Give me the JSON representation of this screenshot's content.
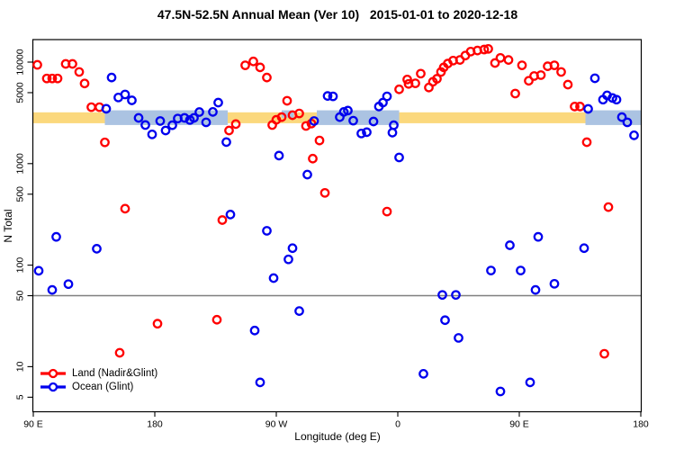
{
  "title": "47.5N-52.5N Annual Mean (Ver 10)   2015-01-01 to 2020-12-18",
  "axes": {
    "x": {
      "label": "Longitude (deg E)",
      "range_unwrapped_deg": [
        90,
        540
      ],
      "ticks": [
        {
          "lon": 90,
          "label": "90 E"
        },
        {
          "lon": 180,
          "label": "180"
        },
        {
          "lon": 270,
          "label": "90 W"
        },
        {
          "lon": 360,
          "label": "0"
        },
        {
          "lon": 450,
          "label": "90 E"
        },
        {
          "lon": 540,
          "label": "180"
        }
      ]
    },
    "y": {
      "label": "N Total",
      "scale": "log",
      "ticks": [
        "5",
        "10",
        "50",
        "100",
        "500",
        "1000",
        "5000",
        "10000"
      ],
      "range": [
        3.5,
        16500
      ]
    }
  },
  "reference": {
    "gray_line_value": 50,
    "gray_line_color": "#7f7f7f",
    "yellow_band": {
      "value_from": 2500,
      "value_to": 3200,
      "lon_from": 90,
      "lon_to": 540,
      "color": "#FBD87D"
    },
    "ocean_band_color": "#ABC3E2",
    "ocean_band": {
      "value_from": 2400,
      "value_to": 3350
    },
    "ocean_band_segments": [
      {
        "lon_from": 143,
        "lon_to": 234,
        "partial": false
      },
      {
        "lon_from": 274,
        "lon_to": 283,
        "partial": true
      },
      {
        "lon_from": 300,
        "lon_to": 361,
        "partial": false
      },
      {
        "lon_from": 499,
        "lon_to": 540,
        "partial": false
      }
    ]
  },
  "legend": {
    "items": [
      {
        "label": "Land (Nadir&Glint)",
        "color": "#FF0000"
      },
      {
        "label": "Ocean (Glint)",
        "color": "#0000EE"
      }
    ]
  },
  "chart_data": {
    "type": "scatter",
    "title": "47.5N-52.5N Annual Mean (Ver 10)   2015-01-01 to 2020-12-18",
    "xlabel": "Longitude (deg E)",
    "ylabel": "N Total",
    "x_is_longitude_unwrapped_90E_to_180": true,
    "ylog": true,
    "legend_position": "bottom-left",
    "series": [
      {
        "name": "Land (Nadir&Glint)",
        "color": "#FF0000",
        "points": [
          [
            93,
            9400
          ],
          [
            100,
            6900
          ],
          [
            104,
            6900
          ],
          [
            108,
            6900
          ],
          [
            114,
            9600
          ],
          [
            119,
            9600
          ],
          [
            124,
            8000
          ],
          [
            128,
            6160
          ],
          [
            133,
            3600
          ],
          [
            139,
            3600
          ],
          [
            143,
            1620
          ],
          [
            154,
            13.7
          ],
          [
            158,
            360
          ],
          [
            182,
            26.5
          ],
          [
            226,
            29
          ],
          [
            230,
            278
          ],
          [
            235,
            2120
          ],
          [
            240,
            2450
          ],
          [
            247,
            9300
          ],
          [
            253,
            10150
          ],
          [
            258,
            8870
          ],
          [
            263,
            7050
          ],
          [
            267,
            2400
          ],
          [
            270,
            2700
          ],
          [
            274,
            2870
          ],
          [
            278,
            4160
          ],
          [
            282,
            3000
          ],
          [
            287,
            3120
          ],
          [
            292,
            2350
          ],
          [
            296,
            2480
          ],
          [
            297,
            1120
          ],
          [
            302,
            1690
          ],
          [
            306,
            515
          ],
          [
            352,
            337
          ],
          [
            361,
            5390
          ],
          [
            367,
            6740
          ],
          [
            368,
            6100
          ],
          [
            373,
            6180
          ],
          [
            377,
            7700
          ],
          [
            383,
            5620
          ],
          [
            386,
            6400
          ],
          [
            389,
            6850
          ],
          [
            392,
            8000
          ],
          [
            394,
            8870
          ],
          [
            397,
            9670
          ],
          [
            401,
            10350
          ],
          [
            406,
            10500
          ],
          [
            410,
            11600
          ],
          [
            414,
            12700
          ],
          [
            419,
            13000
          ],
          [
            424,
            13300
          ],
          [
            427,
            13500
          ],
          [
            432,
            9800
          ],
          [
            436,
            11000
          ],
          [
            442,
            10500
          ],
          [
            447,
            4900
          ],
          [
            452,
            9300
          ],
          [
            457,
            6550
          ],
          [
            461,
            7300
          ],
          [
            466,
            7450
          ],
          [
            471,
            9100
          ],
          [
            476,
            9300
          ],
          [
            481,
            8000
          ],
          [
            486,
            6000
          ],
          [
            491,
            3650
          ],
          [
            495,
            3650
          ],
          [
            500,
            1625
          ],
          [
            513,
            13.4
          ],
          [
            516,
            373
          ]
        ]
      },
      {
        "name": "Ocean (Glint)",
        "color": "#0000EE",
        "points": [
          [
            94,
            88
          ],
          [
            104,
            57
          ],
          [
            107,
            190
          ],
          [
            116,
            65
          ],
          [
            137,
            145
          ],
          [
            144,
            3470
          ],
          [
            148,
            7050
          ],
          [
            153,
            4480
          ],
          [
            158,
            4800
          ],
          [
            163,
            4200
          ],
          [
            168,
            2820
          ],
          [
            173,
            2400
          ],
          [
            178,
            1940
          ],
          [
            184,
            2630
          ],
          [
            188,
            2120
          ],
          [
            193,
            2390
          ],
          [
            197,
            2780
          ],
          [
            202,
            2820
          ],
          [
            206,
            2690
          ],
          [
            209,
            2820
          ],
          [
            213,
            3220
          ],
          [
            218,
            2550
          ],
          [
            223,
            3230
          ],
          [
            227,
            3990
          ],
          [
            233,
            1630
          ],
          [
            236,
            315
          ],
          [
            254,
            22.7
          ],
          [
            258,
            7
          ],
          [
            263,
            218
          ],
          [
            268,
            74.5
          ],
          [
            272,
            1200
          ],
          [
            279,
            114
          ],
          [
            282,
            147
          ],
          [
            287,
            35.3
          ],
          [
            293,
            780
          ],
          [
            298,
            2630
          ],
          [
            308,
            4640
          ],
          [
            312,
            4600
          ],
          [
            317,
            2870
          ],
          [
            320,
            3230
          ],
          [
            323,
            3330
          ],
          [
            327,
            2650
          ],
          [
            333,
            1980
          ],
          [
            337,
            2040
          ],
          [
            342,
            2600
          ],
          [
            346,
            3650
          ],
          [
            349,
            3990
          ],
          [
            352,
            4600
          ],
          [
            356,
            2020
          ],
          [
            357,
            2390
          ],
          [
            361,
            1150
          ],
          [
            379,
            8.5
          ],
          [
            393,
            50.9
          ],
          [
            395,
            28.7
          ],
          [
            403,
            50.9
          ],
          [
            405,
            19.2
          ],
          [
            429,
            88.5
          ],
          [
            436,
            5.7
          ],
          [
            443,
            157
          ],
          [
            451,
            88.5
          ],
          [
            458,
            7
          ],
          [
            462,
            57
          ],
          [
            464,
            190
          ],
          [
            476,
            65.5
          ],
          [
            498,
            147
          ],
          [
            501,
            3460
          ],
          [
            506,
            6930
          ],
          [
            512,
            4270
          ],
          [
            515,
            4700
          ],
          [
            519,
            4430
          ],
          [
            522,
            4270
          ],
          [
            526,
            2870
          ],
          [
            530,
            2550
          ],
          [
            535,
            1900
          ]
        ]
      }
    ]
  }
}
